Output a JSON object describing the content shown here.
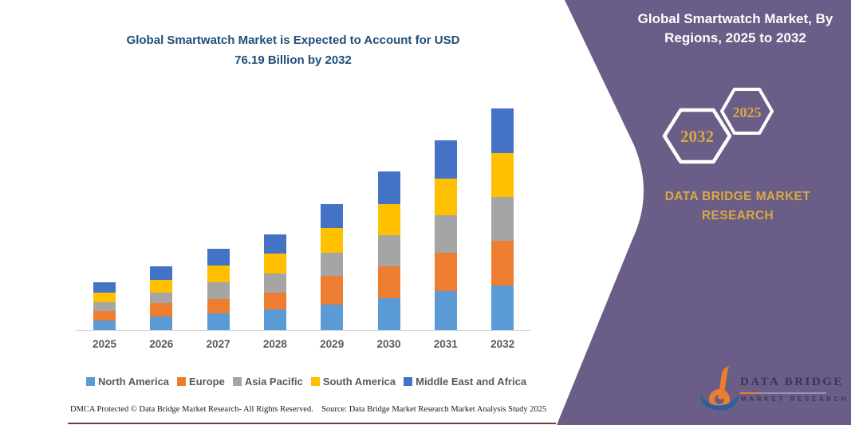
{
  "main": {
    "title_line1": "Global Smartwatch Market is Expected to Account for USD",
    "title_line2": "76.19 Billion by 2032"
  },
  "panel": {
    "title_line1": "Global Smartwatch Market, By",
    "title_line2": "Regions, 2025 to 2032",
    "hexagon_back_label": "2032",
    "hexagon_front_label": "2025",
    "brand_line1": "DATA BRIDGE MARKET",
    "brand_line2": "RESEARCH",
    "background_color": "#6A5D87",
    "accent_gold": "#D9A843"
  },
  "logo": {
    "name_top": "DATA  BRIDGE",
    "name_bottom": "MARKET RESEARCH"
  },
  "footer": {
    "left": "DMCA Protected © Data Bridge Market Research-  All Rights Reserved.",
    "source": "Source: Data Bridge Market Research  Market Analysis Study 2025"
  },
  "chart_data": {
    "type": "bar",
    "stacked": true,
    "title": "Global Smartwatch Market is Expected to Account for USD 76.19 Billion by 2032",
    "unit": "USD Billion",
    "categories": [
      "2025",
      "2026",
      "2027",
      "2028",
      "2029",
      "2030",
      "2031",
      "2032"
    ],
    "series": [
      {
        "name": "North America",
        "color": "#5B9BD5",
        "values": [
          3.3,
          4.6,
          5.8,
          7.0,
          8.9,
          11.0,
          13.4,
          15.3
        ]
      },
      {
        "name": "Europe",
        "color": "#ED7D31",
        "values": [
          3.2,
          4.8,
          5.0,
          5.9,
          9.8,
          11.0,
          13.2,
          15.5
        ]
      },
      {
        "name": "Asia Pacific",
        "color": "#A5A5A5",
        "values": [
          3.0,
          3.6,
          5.7,
          6.6,
          7.9,
          10.7,
          12.8,
          14.9
        ]
      },
      {
        "name": "South America",
        "color": "#FFC000",
        "values": [
          3.3,
          4.4,
          5.8,
          6.7,
          8.6,
          10.5,
          12.6,
          15.2
        ]
      },
      {
        "name": "Middle East and Africa",
        "color": "#4472C4",
        "values": [
          3.6,
          4.6,
          5.6,
          6.8,
          8.2,
          11.4,
          13.2,
          15.29
        ]
      }
    ],
    "totals_estimated": [
      16.4,
      22.0,
      27.9,
      33.0,
      43.4,
      54.6,
      65.2,
      76.19
    ],
    "ylim": [
      0,
      80
    ],
    "gridlines": false,
    "y_axis_visible": false,
    "legend_position": "bottom"
  }
}
